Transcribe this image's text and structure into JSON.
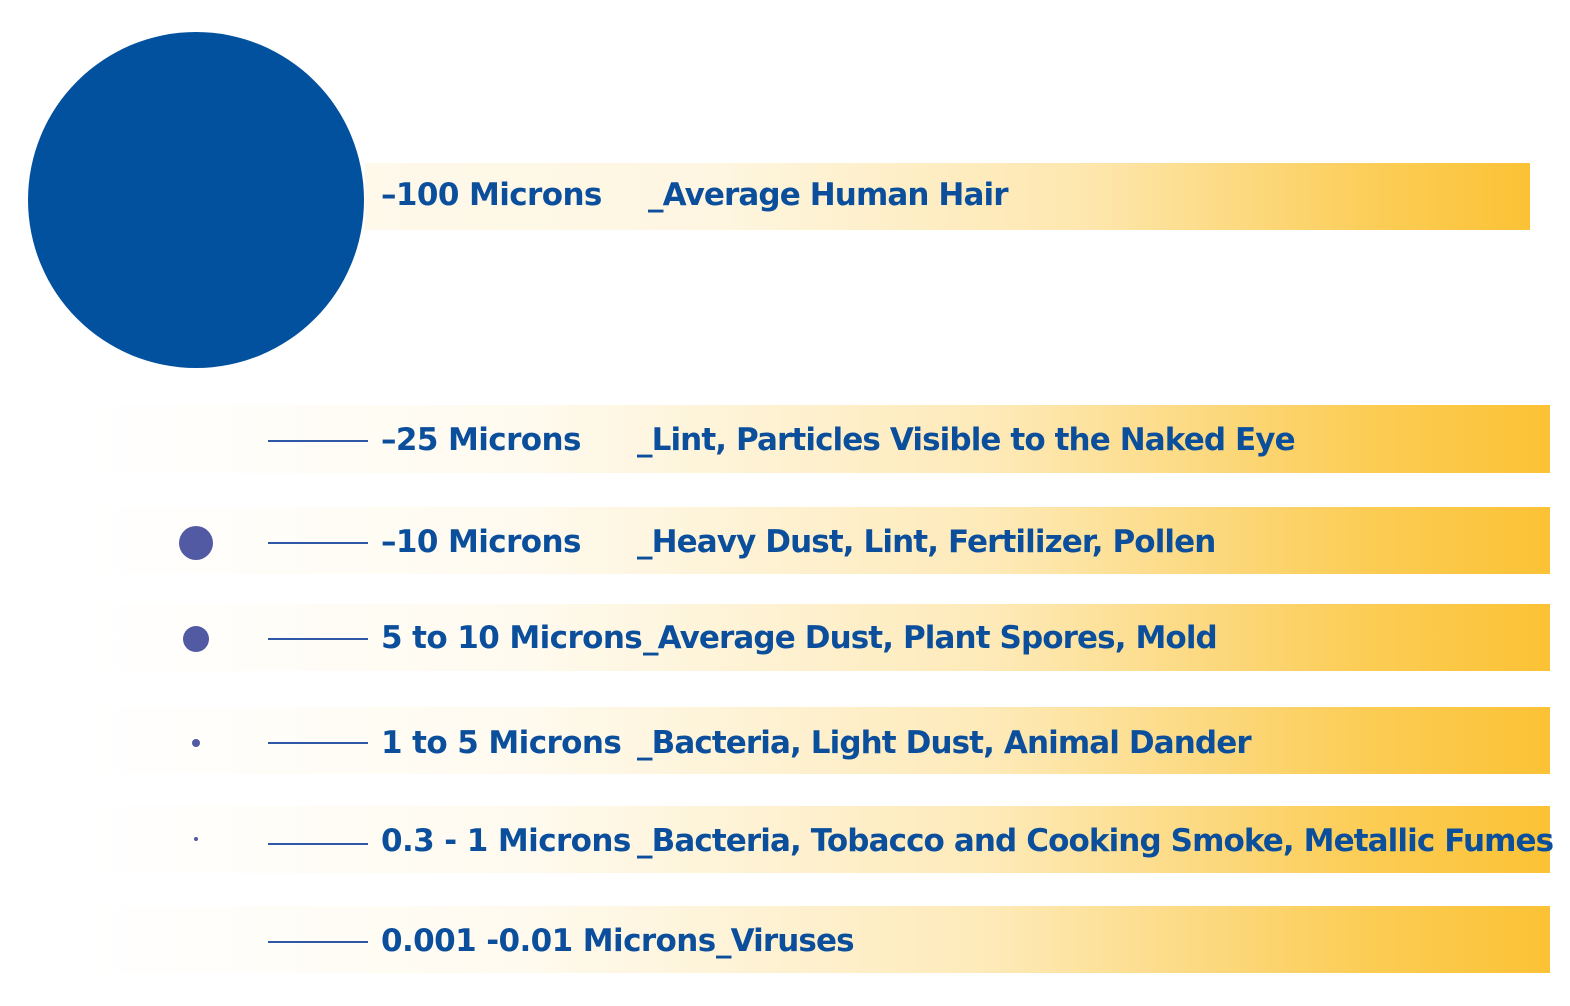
{
  "colors": {
    "text": "#0b4f9c",
    "big_circle": "#02519f",
    "particle": "#525aa4",
    "band": "#fbc235"
  },
  "rows": [
    {
      "size": "–100 Microns",
      "description": "_Average Human Hair"
    },
    {
      "size": "–25 Microns",
      "description": "_Lint, Particles Visible to the Naked Eye"
    },
    {
      "size": "–10 Microns",
      "description": "_Heavy Dust, Lint, Fertilizer, Pollen"
    },
    {
      "size": "5 to 10 Microns",
      "description": "_Average Dust, Plant Spores, Mold"
    },
    {
      "size": "1 to 5 Microns",
      "description": "_Bacteria, Light Dust, Animal Dander"
    },
    {
      "size": "0.3 - 1 Microns",
      "description": "_Bacteria, Tobacco and Cooking Smoke, Metallic Fumes"
    },
    {
      "size": "0.001 -0.01 Microns",
      "description": "_Viruses"
    }
  ]
}
